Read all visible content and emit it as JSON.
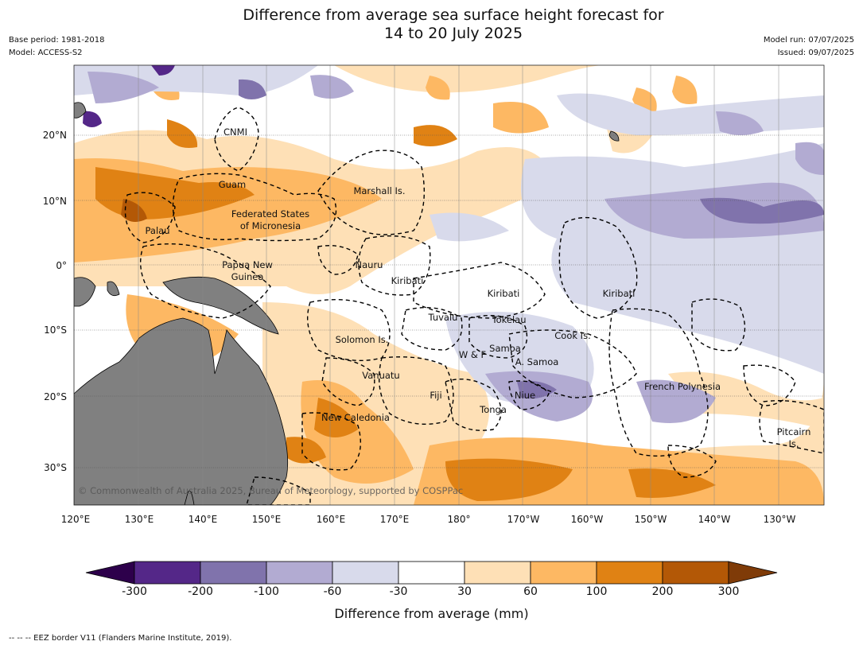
{
  "title": {
    "line1": "Difference from average sea surface height forecast for",
    "line2": "14 to 20 July 2025"
  },
  "meta": {
    "base_period": "Base period: 1981-2018",
    "model": "Model: ACCESS-S2",
    "model_run": "Model run: 07/07/2025",
    "issued": "Issued: 09/07/2025"
  },
  "axes": {
    "lon_ticks": [
      "120°E",
      "130°E",
      "140°E",
      "150°E",
      "160°E",
      "170°E",
      "180°",
      "170°W",
      "160°W",
      "150°W",
      "140°W",
      "130°W"
    ],
    "lat_ticks": [
      "20°N",
      "10°N",
      "0°",
      "10°S",
      "20°S",
      "30°S"
    ]
  },
  "map_labels": {
    "cnmi": "CNMI",
    "guam": "Guam",
    "marshall": "Marshall Is.",
    "fsm1": "Federated States",
    "fsm2": "of Micronesia",
    "palau": "Palau",
    "png1": "Papua New",
    "png2": "Guinea",
    "nauru": "Nauru",
    "kiribati1": "Kiribati",
    "kiribati2": "Kiribati",
    "kiribati3": "Kiribati",
    "tuvalu": "Tuvalu",
    "tokelau": "Tokelau",
    "cook": "Cook Is.",
    "solomon": "Solomon Is.",
    "samoa": "Samoa",
    "wf": "W & F",
    "asamoa": "A. Samoa",
    "vanuatu": "Vanuatu",
    "fiji": "Fiji",
    "niue": "Niue",
    "tonga": "Tonga",
    "frenchpoly": "French Polynesia",
    "newcal": "New Caledonia",
    "pitcairn1": "Pitcairn",
    "pitcairn2": "Is."
  },
  "copyright": "© Commonwealth of Australia 2025, Bureau of Meteorology, supported by COSPPac",
  "colorbar": {
    "title": "Difference from average (mm)",
    "ticks": [
      "-300",
      "-200",
      "-100",
      "-60",
      "-30",
      "30",
      "60",
      "100",
      "200",
      "300"
    ],
    "colors": [
      "#2d004b",
      "#542788",
      "#8073ac",
      "#b2abd2",
      "#d8daeb",
      "#ffffff",
      "#fee0b6",
      "#fdb863",
      "#e08214",
      "#b35806",
      "#7f3b08"
    ]
  },
  "footnote": "--  --  -- EEZ border V11 (Flanders Marine Institute, 2019)."
}
